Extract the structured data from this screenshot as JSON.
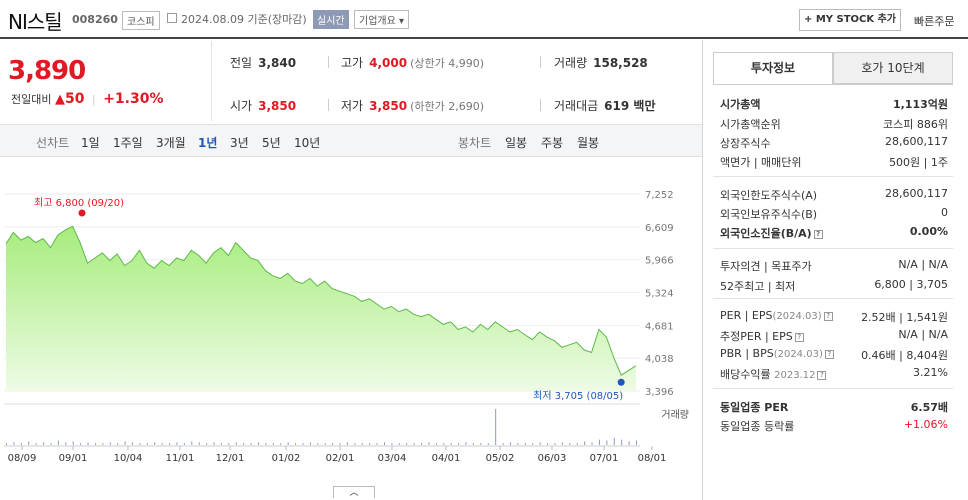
{
  "header": {
    "name": "NI스틸",
    "code": "008260",
    "market": "코스피",
    "date": "2024.08.09  기준(장마감)",
    "realtime": "실시간",
    "company_info": "기업개요 ▾",
    "my_stock": "+ MY STOCK 추가",
    "quick_order": "빠른주문"
  },
  "price": {
    "current": "3,890",
    "change_label": "전일대비",
    "change_arrow": "▲",
    "change": "50",
    "change_pct": "+1.30%"
  },
  "summary": {
    "prev_label": "전일",
    "prev": "3,840",
    "high_label": "고가",
    "high": "4,000",
    "upper": "(상한가 4,990)",
    "volume_label": "거래량",
    "volume": "158,528",
    "open_label": "시가",
    "open": "3,850",
    "low_label": "저가",
    "low": "3,850",
    "lower": "(하한가 2,690)",
    "amount_label": "거래대금",
    "amount": "619 백만"
  },
  "period_bar": {
    "line_chart": "선차트",
    "periods": [
      "1일",
      "1주일",
      "3개월",
      "1년",
      "3년",
      "5년",
      "10년"
    ],
    "selected": "1년",
    "candle_chart": "봉차트",
    "candles": [
      "일봉",
      "주봉",
      "월봉"
    ]
  },
  "chart_data": {
    "type": "area",
    "x_ticks": [
      "08/09",
      "09/01",
      "10/04",
      "11/01",
      "12/01",
      "01/02",
      "02/01",
      "03/04",
      "04/01",
      "05/02",
      "06/03",
      "07/01",
      "08/01"
    ],
    "y_ticks": [
      "7,252",
      "6,609",
      "5,966",
      "5,324",
      "4,681",
      "4,038",
      "3,396"
    ],
    "ylim": [
      3396,
      7252
    ],
    "values": [
      6280,
      6500,
      6350,
      6420,
      6300,
      6380,
      6200,
      6450,
      6550,
      6620,
      6300,
      5900,
      6000,
      6100,
      5950,
      6080,
      5850,
      5950,
      6150,
      5900,
      5800,
      5950,
      5850,
      6000,
      5950,
      6150,
      6050,
      5900,
      6100,
      6200,
      6050,
      6300,
      6150,
      6000,
      5950,
      5750,
      5650,
      5600,
      5700,
      5550,
      5500,
      5600,
      5450,
      5550,
      5400,
      5350,
      5300,
      5250,
      5150,
      5200,
      5100,
      5000,
      5050,
      4950,
      5000,
      4900,
      4850,
      4900,
      4800,
      4700,
      4750,
      4600,
      4650,
      4550,
      4700,
      4600,
      4750,
      4650,
      4550,
      4600,
      4500,
      4400,
      4550,
      4450,
      4380,
      4250,
      4300,
      4350,
      4200,
      4150,
      4600,
      4450,
      4050,
      3705,
      3800,
      3890
    ],
    "high_label": "최고 6,800 (09/20)",
    "low_label": "최저 3,705 (08/05)",
    "volume_label": "거래량",
    "volumes": [
      2,
      3,
      2,
      4,
      2,
      3,
      2,
      5,
      3,
      4,
      2,
      3,
      2,
      2,
      3,
      2,
      4,
      3,
      2,
      2,
      3,
      2,
      2,
      3,
      2,
      4,
      3,
      2,
      3,
      2,
      2,
      3,
      2,
      2,
      3,
      2,
      2,
      2,
      3,
      2,
      2,
      3,
      2,
      2,
      2,
      2,
      3,
      2,
      2,
      2,
      2,
      3,
      2,
      2,
      2,
      2,
      2,
      3,
      2,
      2,
      2,
      2,
      3,
      2,
      2,
      2,
      40,
      2,
      3,
      2,
      2,
      2,
      3,
      2,
      2,
      3,
      2,
      2,
      4,
      3,
      6,
      5,
      8,
      6,
      4,
      5
    ]
  },
  "info": {
    "tab_active": "투자정보",
    "tab_other": "호가 10단계",
    "market_cap_label": "시가총액",
    "market_cap": "1,113억원",
    "cap_rank_label": "시가총액순위",
    "cap_rank": "코스피 886위",
    "shares_label": "상장주식수",
    "shares": "28,600,117",
    "par_label": "액면가 | 매매단위",
    "par": "500원 | 1주",
    "foreign_limit_label": "외국인한도주식수(A)",
    "foreign_limit": "28,600,117",
    "foreign_hold_label": "외국인보유주식수(B)",
    "foreign_hold": "0",
    "foreign_ratio_label": "외국인소진율(B/A)",
    "foreign_ratio": "0.00%",
    "opinion_label": "투자의견 | 목표주가",
    "opinion": "N/A | N/A",
    "week52_label": "52주최고 | 최저",
    "week52": "6,800 | 3,705",
    "per_label": "PER | EPS",
    "per_date": "(2024.03)",
    "per": "2.52배 | 1,541원",
    "est_per_label": "추정PER | EPS",
    "est_per": "N/A | N/A",
    "pbr_label": "PBR | BPS",
    "pbr_date": "(2024.03)",
    "pbr": "0.46배 | 8,404원",
    "div_label": "배당수익률",
    "div_date": "2023.12",
    "div": "3.21%",
    "sector_per_label": "동일업종 PER",
    "sector_per": "6.57배",
    "sector_change_label": "동일업종 등락률",
    "sector_change": "+1.06%"
  }
}
